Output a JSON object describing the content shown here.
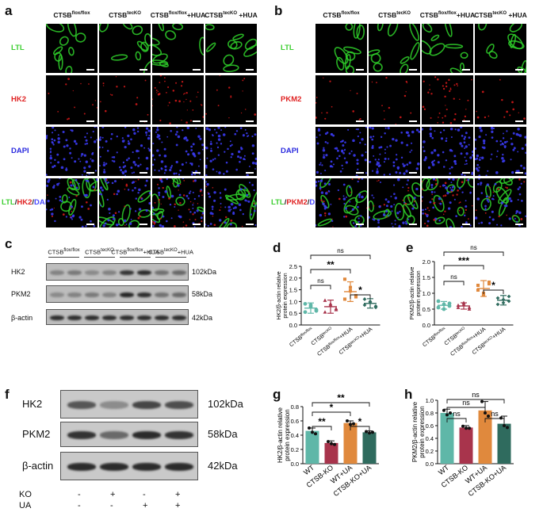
{
  "panels": {
    "a": {
      "label": "a",
      "columns": [
        {
          "base": "CTSB",
          "sup": "flox/flox",
          "suffix": ""
        },
        {
          "base": "CTSB",
          "sup": "tecKO",
          "suffix": ""
        },
        {
          "base": "CTSB",
          "sup": "flox/flox",
          "suffix": "+HUA"
        },
        {
          "base": "CTSB",
          "sup": "tecKO",
          "suffix": " +HUA"
        }
      ],
      "rows": [
        {
          "label": "LTL",
          "color": "#3ecf32"
        },
        {
          "label": "HK2",
          "color": "#e02424"
        },
        {
          "label": "DAPI",
          "color": "#2b2bdf"
        }
      ],
      "merge": {
        "parts": [
          "LTL",
          "/",
          "HK2",
          "/",
          "DAPI"
        ]
      }
    },
    "b": {
      "label": "b",
      "columns": [
        {
          "base": "CTSB",
          "sup": "flox/flox",
          "suffix": ""
        },
        {
          "base": "CTSB",
          "sup": "tecKO",
          "suffix": ""
        },
        {
          "base": "CTSB",
          "sup": "flox/flox",
          "suffix": "+HUA"
        },
        {
          "base": "CTSB",
          "sup": "tecKO",
          "suffix": " +HUA"
        }
      ],
      "rows": [
        {
          "label": "LTL",
          "color": "#3ecf32"
        },
        {
          "label": "PKM2",
          "color": "#e02424"
        },
        {
          "label": "DAPI",
          "color": "#2b2bdf"
        }
      ],
      "merge": {
        "parts": [
          "LTL",
          "/",
          "PKM2",
          "/",
          "DAPI"
        ]
      }
    },
    "c": {
      "label": "c",
      "groups": [
        {
          "base": "CTSB",
          "sup": "flox/flox",
          "suffix": ""
        },
        {
          "base": "CTSB",
          "sup": "tecKO",
          "suffix": ""
        },
        {
          "base": "CTSB",
          "sup": "flox/flox",
          "suffix": "+HUA"
        },
        {
          "base": "CTSB",
          "sup": "tecKO",
          "suffix": "+HUA"
        }
      ],
      "blots": [
        {
          "name": "HK2",
          "kda": "102kDa"
        },
        {
          "name": "PKM2",
          "kda": "58kDa"
        },
        {
          "name": "β-actin",
          "kda": "42kDa"
        }
      ]
    },
    "f": {
      "label": "f",
      "blots": [
        {
          "name": "HK2",
          "kda": "102kDa"
        },
        {
          "name": "PKM2",
          "kda": "58kDa"
        },
        {
          "name": "β-actin",
          "kda": "42kDa"
        }
      ],
      "conditions": [
        {
          "name": "KO",
          "values": [
            "-",
            "+",
            "-",
            "+"
          ]
        },
        {
          "name": "UA",
          "values": [
            "-",
            "-",
            "+",
            "+"
          ]
        }
      ]
    }
  },
  "chart_data": [
    {
      "panel": "d",
      "type": "scatter",
      "ylabel": "HK2/β-actin relative protein expression",
      "ylim": [
        0,
        2.5
      ],
      "yticks": [
        0.0,
        0.5,
        1.0,
        1.5,
        2.0,
        2.5
      ],
      "categories": [
        "CTSB^flox/flox",
        "CTSB^tecKO",
        "CTSB^flox/flox+HUA",
        "CTSB^tecKO+HUA"
      ],
      "category_parts": [
        {
          "base": "CTSB",
          "sup": "flox/flox",
          "suffix": ""
        },
        {
          "base": "CTSB",
          "sup": "tecKO",
          "suffix": ""
        },
        {
          "base": "CTSB",
          "sup": "flox/flox",
          "suffix": "+HUA"
        },
        {
          "base": "CTSB",
          "sup": "tecKO",
          "suffix": "+HUA"
        }
      ],
      "means": [
        0.72,
        0.78,
        1.42,
        0.92
      ],
      "sd": [
        0.22,
        0.28,
        0.42,
        0.2
      ],
      "points": [
        [
          0.9,
          0.78,
          0.65,
          0.55,
          0.85,
          0.6
        ],
        [
          1.05,
          0.85,
          0.65,
          0.55,
          0.9,
          0.7
        ],
        [
          1.95,
          1.6,
          1.25,
          1.1,
          1.45,
          1.2
        ],
        [
          1.1,
          0.95,
          0.8,
          0.85,
          1.0,
          0.75
        ]
      ],
      "colors": [
        "#5fb7a8",
        "#a8344c",
        "#e0893d",
        "#2f6b5e"
      ],
      "markers": [
        "circle",
        "triangle",
        "square",
        "diamond"
      ],
      "comparisons": [
        {
          "from": 0,
          "to": 3,
          "label": "ns"
        },
        {
          "from": 0,
          "to": 2,
          "label": "**"
        },
        {
          "from": 0,
          "to": 1,
          "label": "ns"
        },
        {
          "from": 2,
          "to": 3,
          "label": "*"
        }
      ]
    },
    {
      "panel": "e",
      "type": "scatter",
      "ylabel": "PKM2/β-actin relative protein expression",
      "ylim": [
        0,
        2.0
      ],
      "yticks": [
        0.0,
        0.5,
        1.0,
        1.5,
        2.0
      ],
      "categories": [
        "CTSB^flox/flox",
        "CTSB^tecKO",
        "CTSB^flox/flox+HUA",
        "CTSB^tecKO+HUA"
      ],
      "category_parts": [
        {
          "base": "CTSB",
          "sup": "flox/flox",
          "suffix": ""
        },
        {
          "base": "CTSB",
          "sup": "tecKO",
          "suffix": ""
        },
        {
          "base": "CTSB",
          "sup": "flox/flox",
          "suffix": "+HUA"
        },
        {
          "base": "CTSB",
          "sup": "tecKO",
          "suffix": "+HUA"
        }
      ],
      "means": [
        0.62,
        0.6,
        1.15,
        0.78
      ],
      "sd": [
        0.12,
        0.1,
        0.25,
        0.15
      ],
      "points": [
        [
          0.55,
          0.65,
          0.6,
          0.75,
          0.5,
          0.68
        ],
        [
          0.55,
          0.7,
          0.5,
          0.62,
          0.65,
          0.55
        ],
        [
          1.25,
          0.95,
          1.35,
          1.1,
          1.0,
          1.3
        ],
        [
          0.85,
          0.7,
          0.9,
          0.65,
          0.8,
          0.75
        ]
      ],
      "colors": [
        "#5fb7a8",
        "#a8344c",
        "#e0893d",
        "#2f6b5e"
      ],
      "markers": [
        "circle",
        "triangle",
        "square",
        "diamond"
      ],
      "comparisons": [
        {
          "from": 0,
          "to": 3,
          "label": "ns"
        },
        {
          "from": 0,
          "to": 2,
          "label": "***"
        },
        {
          "from": 0,
          "to": 1,
          "label": "ns"
        },
        {
          "from": 2,
          "to": 3,
          "label": "*"
        }
      ]
    },
    {
      "panel": "g",
      "type": "bar",
      "ylabel": "HK2/β-actin relative protein expression",
      "ylim": [
        0,
        0.8
      ],
      "yticks": [
        0.0,
        0.2,
        0.4,
        0.6,
        0.8
      ],
      "categories": [
        "WT",
        "CTSB-KO",
        "WT+UA",
        "CTSB-KO+UA"
      ],
      "values": [
        0.46,
        0.29,
        0.57,
        0.44
      ],
      "errors": [
        0.04,
        0.03,
        0.03,
        0.02
      ],
      "points": [
        [
          0.5,
          0.44,
          0.42
        ],
        [
          0.31,
          0.28,
          0.27
        ],
        [
          0.6,
          0.55,
          0.56
        ],
        [
          0.45,
          0.43,
          0.44
        ]
      ],
      "colors": [
        "#5fb7a8",
        "#a8344c",
        "#e0893d",
        "#2f6b5e"
      ],
      "comparisons": [
        {
          "from": 0,
          "to": 3,
          "label": "**"
        },
        {
          "from": 0,
          "to": 2,
          "label": "*"
        },
        {
          "from": 0,
          "to": 1,
          "label": "**"
        },
        {
          "from": 2,
          "to": 3,
          "label": "*"
        }
      ]
    },
    {
      "panel": "h",
      "type": "bar",
      "ylabel": "PKM2/β-actin relative protein expression",
      "ylim": [
        0,
        1.0
      ],
      "yticks": [
        0.0,
        0.2,
        0.4,
        0.6,
        0.8,
        1.0
      ],
      "categories": [
        "WT",
        "CTSB-KO",
        "WT+UA",
        "CTSB-KO+UA"
      ],
      "values": [
        0.8,
        0.57,
        0.84,
        0.63
      ],
      "errors": [
        0.06,
        0.03,
        0.14,
        0.12
      ],
      "points": [
        [
          0.84,
          0.77,
          0.8
        ],
        [
          0.59,
          0.56,
          0.56
        ],
        [
          0.98,
          0.8,
          0.75
        ],
        [
          0.72,
          0.6,
          0.57
        ]
      ],
      "colors": [
        "#5fb7a8",
        "#a8344c",
        "#e0893d",
        "#2f6b5e"
      ],
      "comparisons": [
        {
          "from": 0,
          "to": 3,
          "label": "ns"
        },
        {
          "from": 0,
          "to": 2,
          "label": "ns"
        },
        {
          "from": 0,
          "to": 1,
          "label": "ns"
        },
        {
          "from": 2,
          "to": 3,
          "label": "ns"
        }
      ]
    }
  ]
}
